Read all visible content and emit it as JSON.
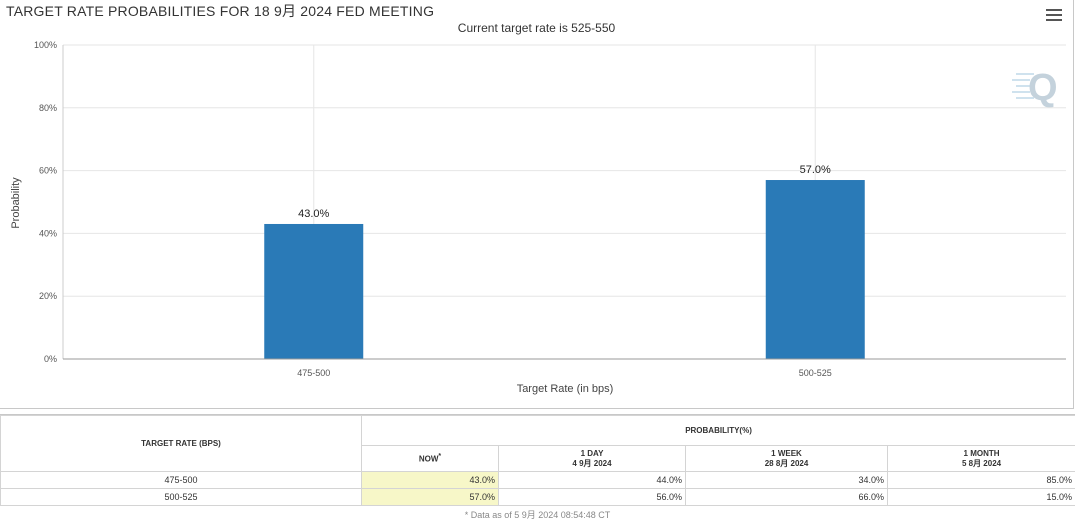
{
  "chart": {
    "title": "TARGET RATE PROBABILITIES FOR 18 9月 2024 FED MEETING",
    "subtitle": "Current target rate is 525-550",
    "menu_icon": "hamburger-menu-icon",
    "logo_icon": "q-logo-icon",
    "bar_color": "#2a7ab7"
  },
  "chart_data": {
    "type": "bar",
    "title": "TARGET RATE PROBABILITIES FOR 18 9月 2024 FED MEETING",
    "subtitle": "Current target rate is 525-550",
    "categories": [
      "475-500",
      "500-525"
    ],
    "values": [
      43.0,
      57.0
    ],
    "data_labels": [
      "43.0%",
      "57.0%"
    ],
    "xlabel": "Target Rate (in bps)",
    "ylabel": "Probability",
    "ylim": [
      0,
      100
    ],
    "yticks": [
      0,
      20,
      40,
      60,
      80,
      100
    ],
    "ytick_labels": [
      "0%",
      "20%",
      "40%",
      "60%",
      "80%",
      "100%"
    ],
    "grid": true,
    "legend": "none"
  },
  "table": {
    "header_target": "TARGET RATE (BPS)",
    "header_probability": "PROBABILITY(%)",
    "col_now": "NOW",
    "col_now_mark": "*",
    "col_1day": "1 DAY",
    "col_1day_date": "4 9月 2024",
    "col_1week": "1 WEEK",
    "col_1week_date": "28 8月 2024",
    "col_1month": "1 MONTH",
    "col_1month_date": "5 8月 2024",
    "rows": [
      {
        "rate": "475-500",
        "now": "43.0%",
        "day1": "44.0%",
        "week1": "34.0%",
        "month1": "85.0%"
      },
      {
        "rate": "500-525",
        "now": "57.0%",
        "day1": "56.0%",
        "week1": "66.0%",
        "month1": "15.0%"
      }
    ],
    "footnote": "* Data as of 5 9月 2024 08:54:48 CT"
  }
}
